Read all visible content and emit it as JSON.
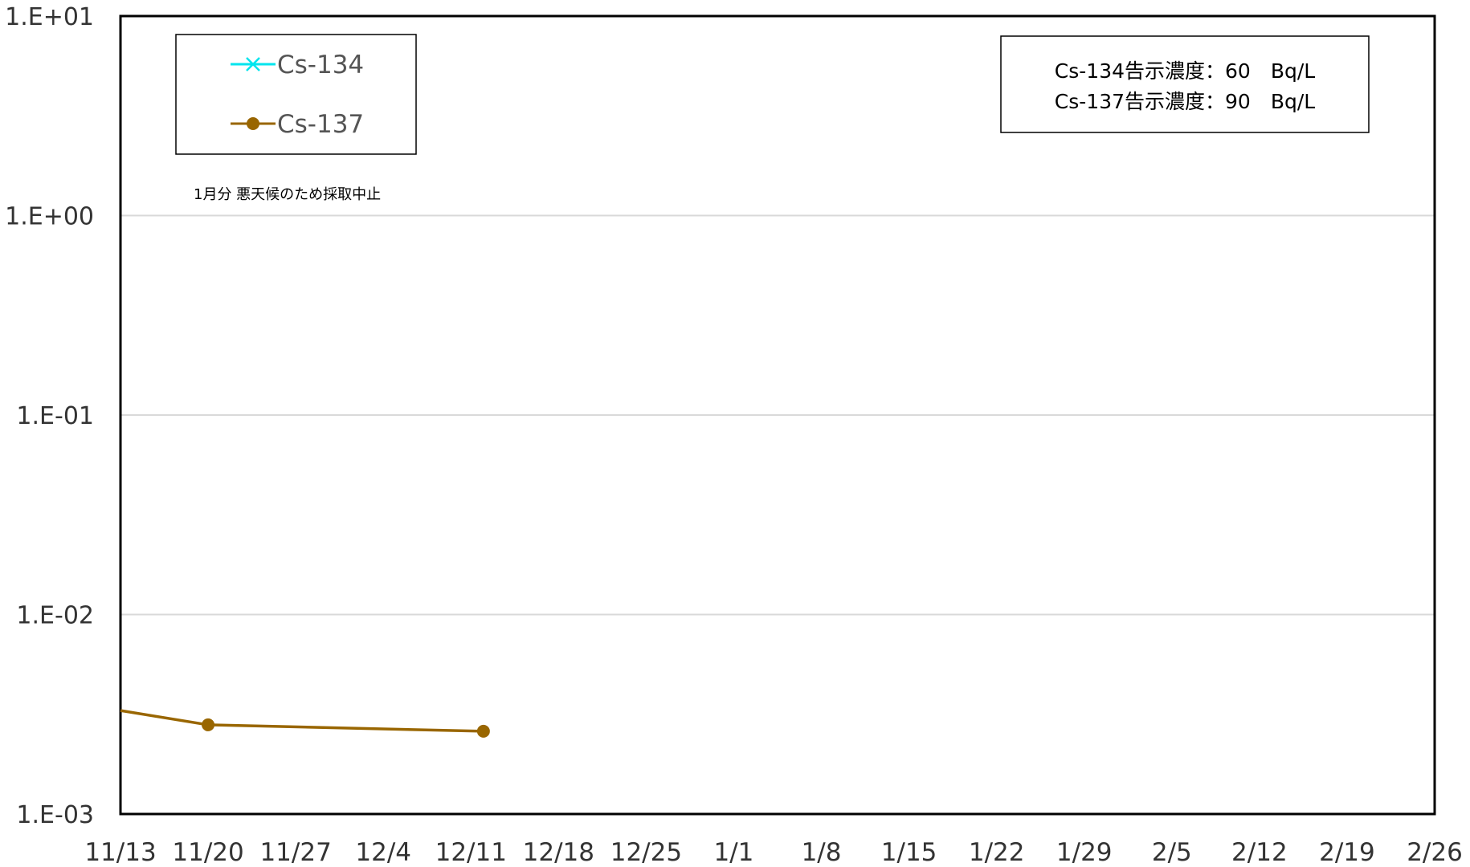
{
  "chart_data": {
    "type": "line",
    "title": "",
    "xlabel": "",
    "ylabel": "",
    "x_ticks": [
      "11/13",
      "11/20",
      "11/27",
      "12/4",
      "12/11",
      "12/18",
      "12/25",
      "1/1",
      "1/8",
      "1/15",
      "1/22",
      "1/29",
      "2/5",
      "2/12",
      "2/19",
      "2/26"
    ],
    "xlim": [
      "11/13",
      "2/26"
    ],
    "y_scale": "log",
    "ylim": [
      0.001,
      10
    ],
    "y_ticks": [
      "1.E-03",
      "1.E-02",
      "1.E-01",
      "1.E+00",
      "1.E+01"
    ],
    "grid": "horizontal",
    "legend_position": "top-left",
    "series": [
      {
        "name": "Cs-134",
        "color": "#00e5ee",
        "marker": "x",
        "x": [],
        "y": []
      },
      {
        "name": "Cs-137",
        "color": "#996600",
        "marker": "circle",
        "x": [
          "11/13",
          "11/20",
          "12/12"
        ],
        "y": [
          0.0033,
          0.0028,
          0.0026
        ],
        "marker_visible": [
          false,
          true,
          true
        ]
      }
    ],
    "annotations": {
      "limit_lines": [
        "Cs-134告示濃度：60　Bq/L",
        "Cs-137告示濃度：90　Bq/L"
      ],
      "note": "1月分 悪天候のため採取中止"
    }
  }
}
